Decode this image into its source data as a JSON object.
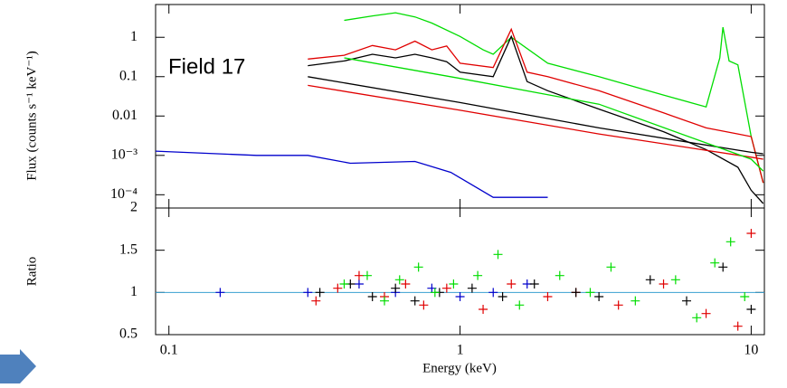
{
  "chart_data": [
    {
      "type": "line",
      "log_x": true,
      "log_y": true,
      "annotation": "Field 17",
      "ylabel": "Flux (counts s⁻¹ keV⁻¹)",
      "xlim": [
        0.09,
        11.1
      ],
      "xticks": [
        0.1,
        1,
        10
      ],
      "ylim": [
        4.6e-05,
        6.8
      ],
      "yticks": [
        1,
        0.1,
        0.01,
        {
          "value": 0.001,
          "label": "10⁻³"
        },
        {
          "value": 0.0001,
          "label": "10⁻⁴"
        }
      ],
      "series": [
        {
          "color": "#00dd00",
          "x": [
            0.4,
            0.5,
            0.6,
            0.7,
            0.8,
            1.0,
            1.2,
            1.3,
            1.5,
            2,
            3,
            5,
            7,
            7.8,
            8,
            8.4,
            9,
            10,
            11
          ],
          "values": [
            2.7,
            3.5,
            4.2,
            3.3,
            2.3,
            1.05,
            0.48,
            0.37,
            1.0,
            0.22,
            0.1,
            0.034,
            0.017,
            0.3,
            1.8,
            0.25,
            0.2,
            0.003,
            0.0002
          ]
        },
        {
          "color": "#e00000",
          "x": [
            0.3,
            0.4,
            0.5,
            0.6,
            0.7,
            0.8,
            0.9,
            1.0,
            1.3,
            1.5,
            1.7,
            2,
            3,
            5,
            7,
            9,
            10,
            11
          ],
          "values": [
            0.28,
            0.35,
            0.62,
            0.48,
            0.8,
            0.48,
            0.6,
            0.22,
            0.17,
            1.6,
            0.13,
            0.1,
            0.044,
            0.012,
            0.005,
            0.0035,
            0.003,
            0.0002
          ]
        },
        {
          "color": "#000000",
          "x": [
            0.3,
            0.4,
            0.5,
            0.6,
            0.7,
            0.8,
            0.9,
            1.0,
            1.3,
            1.5,
            1.7,
            2,
            3,
            5,
            7,
            9,
            10,
            11
          ],
          "values": [
            0.19,
            0.25,
            0.37,
            0.3,
            0.37,
            0.3,
            0.24,
            0.13,
            0.1,
            1.05,
            0.075,
            0.044,
            0.015,
            0.004,
            0.0014,
            0.0005,
            0.00013,
            6e-05
          ]
        },
        {
          "color": "#0000cc",
          "x": [
            0.09,
            0.2,
            0.3,
            0.42,
            0.7,
            0.93,
            1.3,
            2.0
          ],
          "values": [
            0.00128,
            0.001,
            0.001,
            0.00063,
            0.0007,
            0.00037,
            8.6e-05,
            8.6e-05
          ]
        },
        {
          "color": "#e00000",
          "x": [
            0.3,
            1,
            3,
            10,
            11
          ],
          "values": [
            0.06,
            0.014,
            0.0035,
            0.0009,
            0.0008
          ]
        },
        {
          "color": "#000000",
          "x": [
            0.3,
            1,
            3,
            10,
            11
          ],
          "values": [
            0.1,
            0.022,
            0.005,
            0.0012,
            0.0011
          ]
        },
        {
          "color": "#00dd00",
          "x": [
            0.4,
            1,
            3,
            10,
            11
          ],
          "values": [
            0.3,
            0.09,
            0.02,
            0.0008,
            0.0004
          ]
        }
      ]
    },
    {
      "type": "scatter",
      "log_x": true,
      "xlabel": "Energy (keV)",
      "ylabel": "Ratio",
      "xlim": [
        0.09,
        11.1
      ],
      "xticks": [
        0.1,
        1,
        10
      ],
      "ylim": [
        0.5,
        2
      ],
      "yticks": [
        0.5,
        1,
        1.5,
        2
      ],
      "ref_line": 1,
      "series": [
        {
          "color": "#0000cc",
          "x": [
            0.15,
            0.3,
            0.45,
            0.6,
            0.8,
            1.0,
            1.3,
            1.7
          ],
          "values": [
            1.0,
            1.0,
            1.1,
            1.0,
            1.05,
            0.95,
            1.0,
            1.1
          ]
        },
        {
          "color": "#e00000",
          "x": [
            0.32,
            0.38,
            0.45,
            0.55,
            0.65,
            0.75,
            0.9,
            1.2,
            1.5,
            2,
            2.5,
            3.5,
            5,
            7,
            9,
            10
          ],
          "values": [
            0.9,
            1.05,
            1.2,
            0.95,
            1.1,
            0.85,
            1.05,
            0.8,
            1.1,
            0.95,
            1.0,
            0.85,
            1.1,
            0.75,
            0.6,
            1.7
          ]
        },
        {
          "color": "#000000",
          "x": [
            0.33,
            0.42,
            0.5,
            0.6,
            0.7,
            0.85,
            1.1,
            1.4,
            1.8,
            2.5,
            3,
            4.5,
            6,
            8,
            10
          ],
          "values": [
            1.0,
            1.1,
            0.95,
            1.05,
            0.9,
            1.0,
            1.05,
            0.95,
            1.1,
            1.0,
            0.95,
            1.15,
            0.9,
            1.3,
            0.8
          ]
        },
        {
          "color": "#00dd00",
          "x": [
            0.4,
            0.48,
            0.55,
            0.62,
            0.72,
            0.82,
            0.95,
            1.15,
            1.35,
            1.6,
            2.2,
            2.8,
            3.3,
            4,
            5.5,
            6.5,
            7.5,
            8.5,
            9.5
          ],
          "values": [
            1.1,
            1.2,
            0.9,
            1.15,
            1.3,
            1.0,
            1.1,
            1.2,
            1.45,
            0.85,
            1.2,
            1.0,
            1.3,
            0.9,
            1.15,
            0.7,
            1.35,
            1.6,
            0.95
          ]
        }
      ]
    }
  ]
}
